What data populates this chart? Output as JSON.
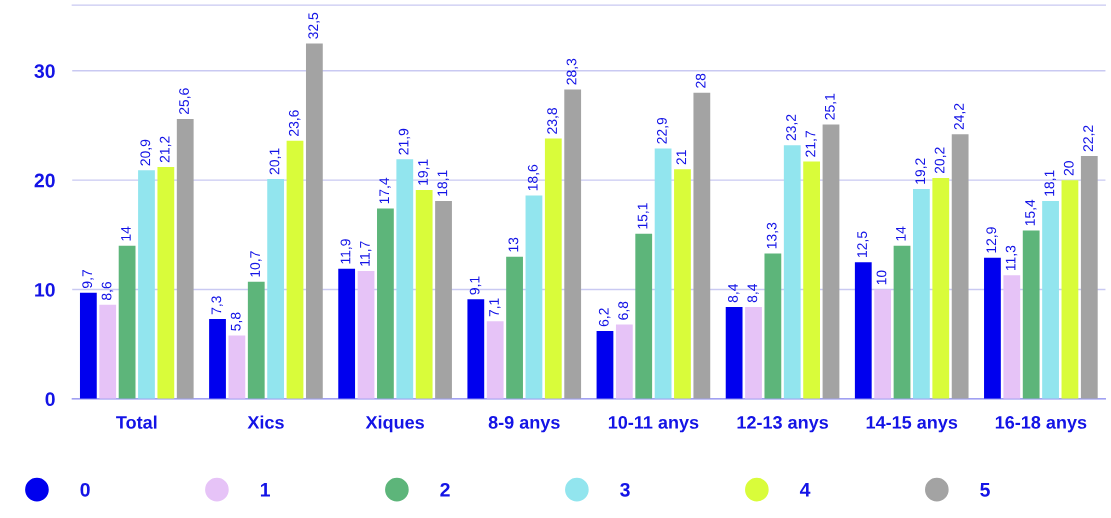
{
  "chart_data": {
    "type": "bar",
    "categories": [
      "Total",
      "Xics",
      "Xiques",
      "8-9 anys",
      "10-11 anys",
      "12-13 anys",
      "14-15 anys",
      "16-18 anys"
    ],
    "series": [
      {
        "name": "0",
        "color": "#0000ee",
        "values": [
          9.7,
          7.3,
          11.9,
          9.1,
          6.2,
          8.4,
          12.5,
          12.9
        ],
        "value_labels": [
          "9,7",
          "7,3",
          "11,9",
          "9,1",
          "6,2",
          "8,4",
          "12,5",
          "12,9"
        ]
      },
      {
        "name": "1",
        "color": "#e6c3f7",
        "values": [
          8.6,
          5.8,
          11.7,
          7.1,
          6.8,
          8.4,
          10,
          11.3
        ],
        "value_labels": [
          "8,6",
          "5,8",
          "11,7",
          "7,1",
          "6,8",
          "8,4",
          "10",
          "11,3"
        ]
      },
      {
        "name": "2",
        "color": "#5db57a",
        "values": [
          14,
          10.7,
          17.4,
          13,
          15.1,
          13.3,
          14,
          15.4
        ],
        "value_labels": [
          "14",
          "10,7",
          "17,4",
          "13",
          "15,1",
          "13,3",
          "14",
          "15,4"
        ]
      },
      {
        "name": "3",
        "color": "#92e5ee",
        "values": [
          20.9,
          20.1,
          21.9,
          18.6,
          22.9,
          23.2,
          19.2,
          18.1
        ],
        "value_labels": [
          "20,9",
          "20,1",
          "21,9",
          "18,6",
          "22,9",
          "23,2",
          "19,2",
          "18,1"
        ]
      },
      {
        "name": "4",
        "color": "#d9fc3a",
        "values": [
          21.2,
          23.6,
          19.1,
          23.8,
          21,
          21.7,
          20.2,
          20
        ],
        "value_labels": [
          "21,2",
          "23,6",
          "19,1",
          "23,8",
          "21",
          "21,7",
          "20,2",
          "20"
        ]
      },
      {
        "name": "5",
        "color": "#a3a3a3",
        "values": [
          25.6,
          32.5,
          18.1,
          28.3,
          28,
          25.1,
          24.2,
          22.2
        ],
        "value_labels": [
          "25,6",
          "32,5",
          "18,1",
          "28,3",
          "28",
          "25,1",
          "24,2",
          "22,2"
        ]
      }
    ],
    "ylim": [
      0,
      36
    ],
    "yticks": [
      0,
      10,
      20,
      30
    ],
    "grid": "y",
    "legend": "bottom"
  }
}
